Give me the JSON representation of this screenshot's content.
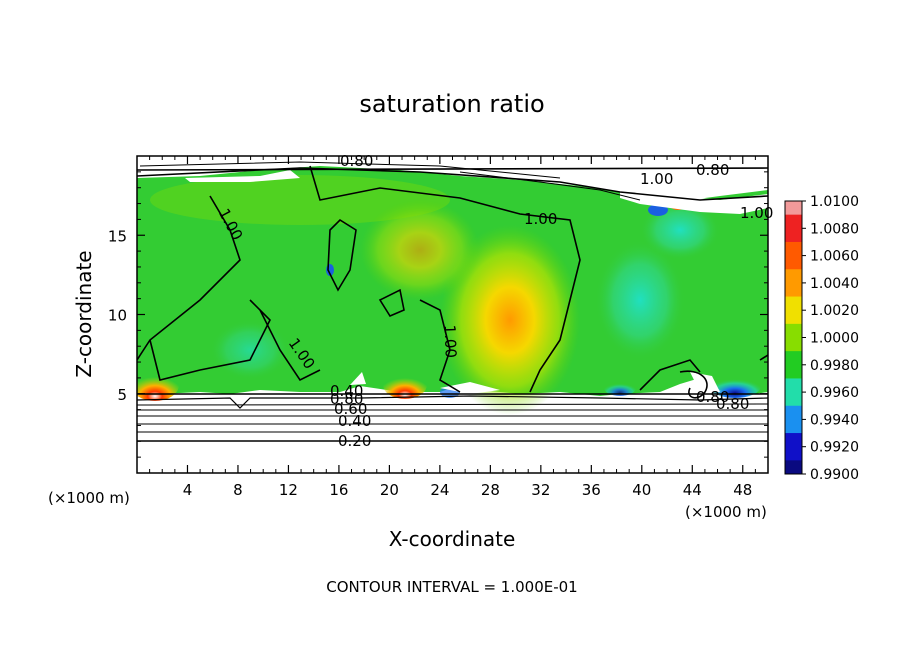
{
  "chart_data": {
    "type": "heatmap",
    "title": "saturation ratio",
    "xlabel": "X-coordinate",
    "ylabel": "Z-coordinate",
    "x_unit_left": "(×1000 m)",
    "x_unit_right": "(×1000 m)",
    "xlim": [
      0,
      50
    ],
    "ylim": [
      0,
      20
    ],
    "x_ticks": [
      "4",
      "8",
      "12",
      "16",
      "20",
      "24",
      "28",
      "32",
      "36",
      "40",
      "44",
      "48"
    ],
    "y_ticks": [
      "5",
      "10",
      "15"
    ],
    "footer": "CONTOUR INTERVAL = 1.000E-01",
    "colorbar": {
      "labels": [
        "1.0100",
        "1.0080",
        "1.0060",
        "1.0040",
        "1.0020",
        "1.0000",
        "0.9980",
        "0.9960",
        "0.9940",
        "0.9920",
        "0.9900"
      ],
      "colors": [
        "#f29a9a",
        "#ee2222",
        "#ff5a00",
        "#ff9a00",
        "#f0e000",
        "#88dd00",
        "#22cc22",
        "#22ddaa",
        "#1a90f0",
        "#1010c8",
        "#0a0a80",
        "#8000a0"
      ]
    },
    "contour_labels": [
      "0.80",
      "1.00",
      "0.80",
      "1.00",
      "1.00",
      "1.00",
      "1.00",
      "0.80",
      "0.60",
      "0.40",
      "0.20",
      "0.80",
      "0.40",
      "1.00",
      "0.80"
    ],
    "colors": {
      "field": "#33cc33",
      "field_light": "#a8e000",
      "cold": "#20e0c0",
      "warm": "#f5d800",
      "hot": "#ff3a00",
      "contour": "#000000"
    }
  }
}
